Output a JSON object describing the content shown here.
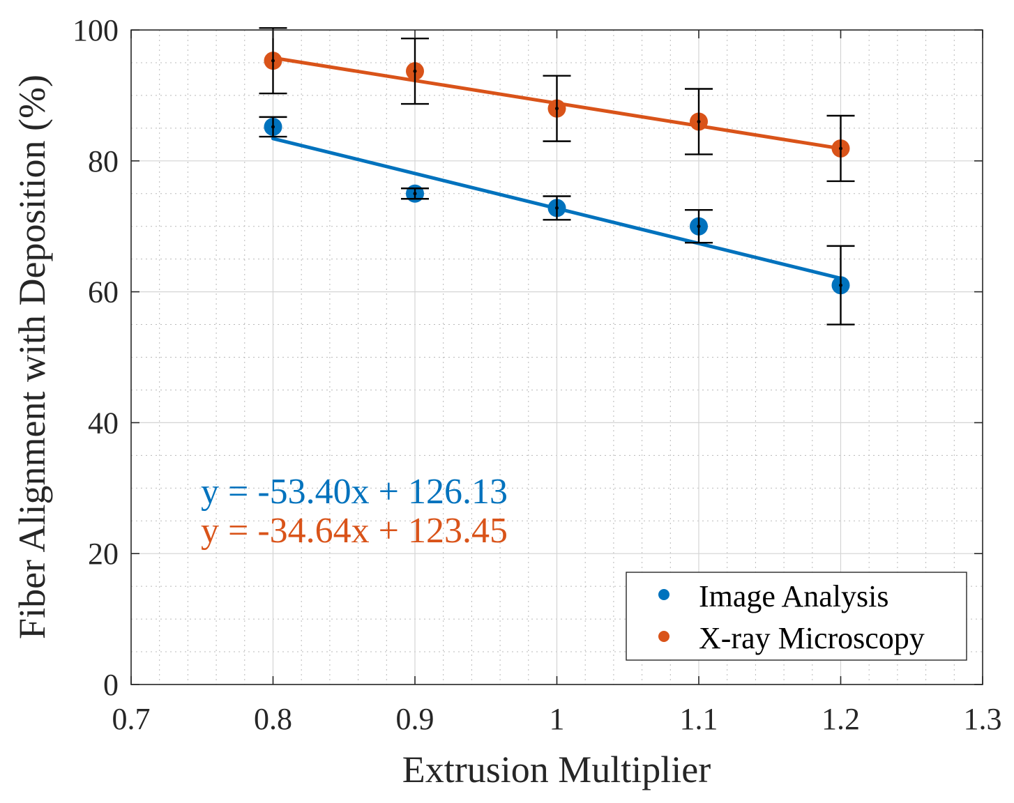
{
  "chart_data": {
    "type": "scatter",
    "title": "",
    "xlabel": "Extrusion Multiplier",
    "ylabel": "Fiber Alignment with Deposition (%)",
    "xlim": [
      0.7,
      1.3
    ],
    "ylim": [
      0,
      100
    ],
    "xticks": [
      0.7,
      0.8,
      0.9,
      1.0,
      1.1,
      1.2,
      1.3
    ],
    "xtick_labels": [
      "0.7",
      "0.8",
      "0.9",
      "1",
      "1.1",
      "1.2",
      "1.3"
    ],
    "yticks": [
      0,
      20,
      40,
      60,
      80,
      100
    ],
    "ytick_labels": [
      "0",
      "20",
      "40",
      "60",
      "80",
      "100"
    ],
    "grid": true,
    "minor_grid": true,
    "legend_position": "bottom-right",
    "series": [
      {
        "name": "Image Analysis",
        "color": "#0072BD",
        "x": [
          0.8,
          0.9,
          1.0,
          1.1,
          1.2
        ],
        "y": [
          85.2,
          75.0,
          72.8,
          70.0,
          61.0
        ],
        "error": [
          1.5,
          0.8,
          1.8,
          2.5,
          6.0
        ],
        "fit": {
          "slope": -53.4,
          "intercept": 126.13,
          "label": "y = -53.40x + 126.13"
        }
      },
      {
        "name": "X-ray Microscopy",
        "color": "#D95319",
        "x": [
          0.8,
          0.9,
          1.0,
          1.1,
          1.2
        ],
        "y": [
          95.3,
          93.7,
          88.0,
          86.0,
          81.9
        ],
        "error": [
          5.0,
          5.0,
          5.0,
          5.0,
          5.0
        ],
        "fit": {
          "slope": -34.64,
          "intercept": 123.45,
          "label": "y = -34.64x + 123.45"
        }
      }
    ]
  }
}
